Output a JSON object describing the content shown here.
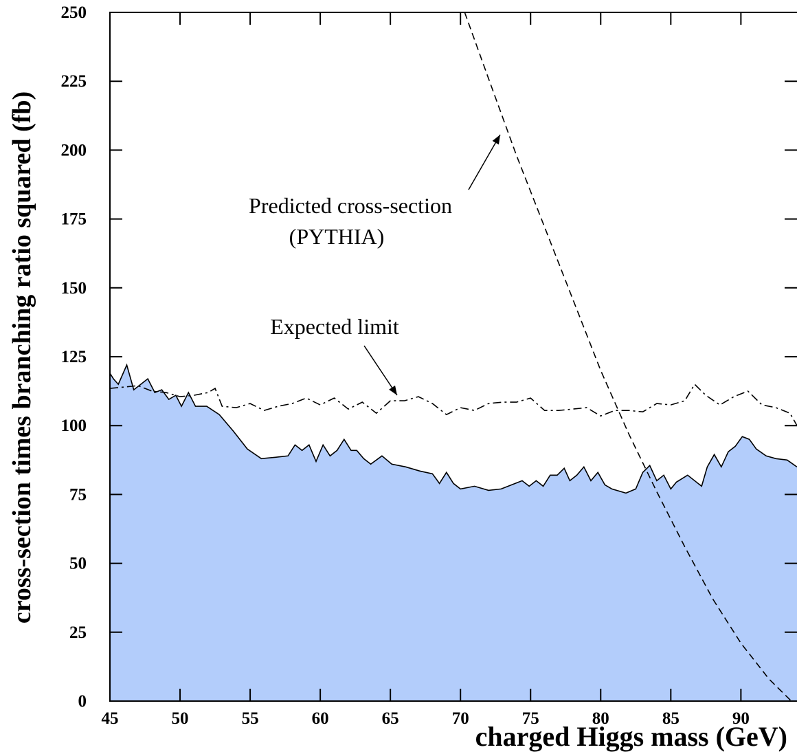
{
  "chart_data": {
    "type": "line",
    "xlabel": "charged Higgs mass (GeV)",
    "ylabel": "cross-section times branching ratio squared (fb)",
    "xlim": [
      45,
      94
    ],
    "ylim": [
      0,
      250
    ],
    "xticks": [
      45,
      50,
      55,
      60,
      65,
      70,
      75,
      80,
      85,
      90
    ],
    "yticks": [
      0,
      25,
      50,
      75,
      100,
      125,
      150,
      175,
      200,
      225,
      250
    ],
    "series": [
      {
        "style": "filled",
        "color": "#b3cdfb",
        "x": [
          45,
          45.25,
          45.6,
          46.2,
          46.7,
          47.2,
          47.7,
          48.2,
          48.7,
          49.2,
          49.7,
          50.1,
          50.6,
          51.1,
          51.9,
          52.8,
          53.8,
          54.8,
          55.8,
          56.8,
          57.7,
          58.2,
          58.7,
          59.2,
          59.7,
          60.2,
          60.7,
          61.2,
          61.7,
          62.2,
          62.6,
          63.1,
          63.6,
          64.4,
          65.1,
          66.1,
          67.1,
          68.0,
          68.5,
          69.0,
          69.5,
          70,
          71,
          72,
          72.9,
          73.9,
          74.4,
          74.9,
          75.4,
          75.9,
          76.4,
          76.9,
          77.4,
          77.8,
          78.3,
          78.8,
          79.3,
          79.8,
          80.3,
          80.8,
          81.8,
          82.5,
          83,
          83.5,
          84,
          84.5,
          85,
          85.4,
          86.2,
          87.2,
          87.6,
          88.1,
          88.6,
          89.1,
          89.6,
          90.1,
          90.6,
          91.1,
          91.8,
          92.5,
          93.3,
          94
        ],
        "values": [
          119,
          117,
          115,
          122,
          113,
          115,
          117,
          112,
          113,
          109.5,
          111,
          107,
          112,
          107,
          107,
          104,
          98,
          91.5,
          88,
          88.5,
          89,
          93,
          91,
          93,
          87,
          93,
          89,
          91,
          95,
          91,
          91,
          88,
          86,
          89,
          86,
          85,
          83.5,
          82.5,
          79,
          83,
          79,
          77,
          78,
          76.5,
          77,
          79,
          80,
          78,
          80,
          78,
          82,
          82,
          84.5,
          80,
          82,
          85,
          80,
          83,
          78.5,
          77,
          75.5,
          77,
          83,
          85.5,
          80,
          82,
          77,
          79.5,
          82,
          78,
          85,
          89.5,
          85,
          90.5,
          92.5,
          96,
          95,
          91.5,
          89,
          88,
          87.5,
          85
        ]
      },
      {
        "style": "dashdot",
        "color": "#000000",
        "x": [
          45,
          46,
          47,
          48,
          49,
          50,
          51,
          52,
          52.5,
          53,
          54,
          55,
          56,
          57,
          58,
          59,
          60,
          61,
          62,
          63,
          64,
          65,
          66,
          67,
          68,
          69,
          70,
          71,
          72,
          73,
          74,
          75,
          76,
          77,
          78,
          79,
          80,
          81,
          82,
          83,
          84,
          85,
          86,
          86.7,
          87.5,
          88.5,
          89.5,
          90.5,
          91.5,
          92.5,
          93.5,
          94
        ],
        "values": [
          113.5,
          114,
          114.5,
          112.5,
          112,
          110.5,
          111,
          112,
          113.5,
          107,
          106.5,
          108,
          105.5,
          107,
          108,
          110,
          107.5,
          110,
          106,
          108.5,
          104.5,
          109,
          109,
          110.5,
          108,
          104,
          106.5,
          105.5,
          108,
          108.5,
          108.5,
          110,
          105.5,
          105.5,
          106,
          106.5,
          103.5,
          105.5,
          105.5,
          105,
          108,
          107.5,
          109,
          115,
          111,
          107.5,
          110.5,
          112.5,
          107.5,
          106.5,
          104.5,
          100
        ]
      },
      {
        "style": "dashed",
        "color": "#000000",
        "x": [
          70.3,
          72,
          74,
          76,
          78,
          80,
          82,
          84,
          86,
          88,
          90,
          92,
          93.6
        ],
        "values": [
          250,
          226,
          198,
          172,
          146,
          120,
          97,
          76,
          56,
          37,
          21,
          8,
          0
        ]
      }
    ],
    "annotations": [
      {
        "text": "Predicted cross-section"
      },
      {
        "text": "(PYTHIA)"
      },
      {
        "text": "Expected limit"
      }
    ]
  }
}
